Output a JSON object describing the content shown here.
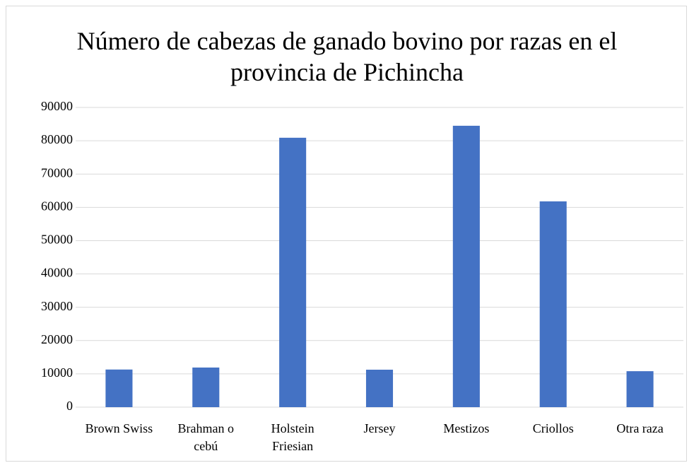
{
  "chart_data": {
    "type": "bar",
    "title": "Número de cabezas de ganado bovino por razas en el provincia de Pichincha",
    "categories": [
      "Brown Swiss",
      "Brahman o cebú",
      "Holstein Friesian",
      "Jersey",
      "Mestizos",
      "Criollos",
      "Otra raza"
    ],
    "values": [
      11300,
      11900,
      80900,
      11250,
      84500,
      61800,
      10800
    ],
    "color": "#4472c4",
    "ylim": [
      0,
      90000
    ],
    "yticks": [
      0,
      10000,
      20000,
      30000,
      40000,
      50000,
      60000,
      70000,
      80000,
      90000
    ],
    "grid": true
  }
}
